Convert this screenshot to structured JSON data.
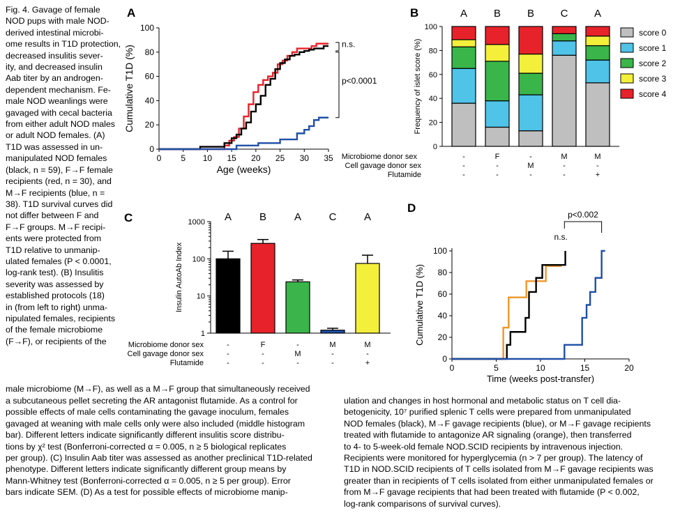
{
  "caption": {
    "side_lines": [
      "Fig. 4. Gavage of female",
      "NOD pups with male NOD-",
      "derived intestinal microbi-",
      "ome results in T1D protection,",
      "decreased insulitis sever-",
      "ity, and decreased insulin",
      "Aab titer by an androgen-",
      "dependent mechanism. Fe-",
      "male NOD weanlings were",
      "gavaged with cecal bacteria",
      "from either adult NOD males",
      "or adult NOD females. (A)",
      "T1D was assessed in un-",
      "manipulated NOD females",
      "(black, n = 59), F→F female",
      "recipients (red, n = 30), and",
      "M→F recipients (blue, n =",
      "38). T1D survival curves did",
      "not differ between F and",
      "F→F groups. M→F recipi-",
      "ents were protected from",
      "T1D relative to unmanip-",
      "ulated females (P < 0.0001,",
      "log-rank test). (B) Insulitis",
      "severity was assessed by",
      "established protocols (18)",
      "in (from left to right) unma-",
      "nipulated females, recipients",
      "of the female microbiome",
      "(F→F), or recipients of the"
    ],
    "top_line": "male microbiome (M→F), as well as a M→F group that simultaneously received",
    "bottom_left_lines": [
      "a subcutaneous pellet secreting the AR antagonist flutamide. As a control for",
      "possible effects of male cells contaminating the gavage inoculum, females",
      "gavaged at weaning with male cells only were also included (middle histogram",
      "bar). Different letters indicate significantly different insulitis score distribu-",
      "tions by χ² test (Bonferroni-corrected α = 0.005, n ≥ 5 biological replicates",
      "per group). (C) Insulin Aab titer was assessed as another preclinical T1D-related",
      "phenotype. Different letters indicate significantly different group means by",
      "Mann-Whitney test (Bonferroni-corrected α = 0.005, n ≥ 5 per group). Error",
      "bars indicate SEM. (D) As a test for possible effects of microbiome manip-"
    ],
    "bottom_right_lines": [
      "ulation and changes in host hormonal and metabolic status on T cell dia-",
      "betogenicity, 10⁷ purified splenic T cells were prepared from unmanipulated",
      "NOD females (black), M→F gavage recipients (blue), or M→F gavage recipients",
      "treated with flutamide to antagonize AR signaling (orange), then transferred",
      "to 4- to 5-week-old female NOD.SCID recipients by intravenous injection.",
      "Recipients were monitored for hyperglycemia (n > 7 per group). The latency of",
      "T1D in NOD.SCID recipients of T cells isolated from M→F gavage recipients was",
      "greater than in recipients of T cells isolated from either unmanipulated females or",
      "from M→F gavage recipients that had been treated with flutamide (P < 0.002,",
      "log-rank comparisons of survival curves)."
    ]
  },
  "colors": {
    "black": "#000000",
    "red": "#e8222a",
    "blue": "#1f4fa8",
    "orange": "#f0962b",
    "score0": "#bfbfbf",
    "score1": "#4fc3e8",
    "score2": "#3ab54a",
    "score3": "#f3ef3b",
    "score4": "#e8222a"
  },
  "chart_data": [
    {
      "panel": "A",
      "type": "line",
      "step": true,
      "ylabel": "Cumulative T1D (%)",
      "xlabel": "Age (weeks)",
      "xlim": [
        0,
        35
      ],
      "ylim": [
        0,
        100
      ],
      "xticks": [
        0,
        5,
        10,
        15,
        20,
        25,
        30,
        35
      ],
      "yticks": [
        0,
        20,
        40,
        60,
        80,
        100
      ],
      "yticklabels": [
        "0",
        "20",
        "40",
        "60",
        "80",
        "100"
      ],
      "series": [
        {
          "color": "red",
          "x": [
            0,
            13.5,
            14.5,
            15.5,
            16.5,
            17.5,
            18.5,
            19.5,
            20.5,
            21.5,
            22.5,
            23.5,
            24.5,
            25.5,
            26.5,
            27.5,
            28.5,
            29.5,
            30.5,
            31.5,
            32.5,
            33.5,
            35
          ],
          "y": [
            0,
            3,
            7,
            10,
            17,
            27,
            37,
            47,
            53,
            57,
            60,
            63,
            70,
            73,
            77,
            80,
            83,
            83,
            83,
            85,
            87,
            87,
            87
          ]
        },
        {
          "color": "black",
          "x": [
            0,
            8.5,
            13.5,
            15,
            16,
            17,
            18,
            19,
            20,
            21,
            22,
            23,
            24,
            25,
            26,
            27,
            28,
            29,
            30,
            31,
            32,
            33,
            34,
            35
          ],
          "y": [
            0,
            2,
            5,
            9,
            12,
            17,
            22,
            31,
            37,
            44,
            53,
            58,
            66,
            71,
            74,
            77,
            78,
            80,
            81,
            82,
            83,
            83,
            85,
            85
          ]
        },
        {
          "color": "blue",
          "x": [
            0,
            16,
            20.5,
            25,
            28.5,
            30,
            31,
            32,
            33,
            35
          ],
          "y": [
            0,
            3,
            5,
            8,
            13,
            16,
            19,
            24,
            26,
            26
          ]
        }
      ],
      "annotations": [
        "n.s.",
        "p<0.0001"
      ]
    },
    {
      "panel": "B",
      "type": "bar",
      "stacked": true,
      "ylabel": "Frequency of islet score (%)",
      "ylim": [
        0,
        100
      ],
      "yticks": [
        0,
        20,
        40,
        60,
        80,
        100
      ],
      "yticklabels": [
        "0",
        "20",
        "40",
        "60",
        "80",
        "100"
      ],
      "group_letters": [
        "A",
        "B",
        "B",
        "C",
        "A"
      ],
      "legend": [
        "score 0",
        "score 1",
        "score 2",
        "score 3",
        "score 4"
      ],
      "legend_position": "right",
      "series": [
        {
          "name": "score 0",
          "values": [
            36,
            16,
            13,
            76,
            53
          ]
        },
        {
          "name": "score 1",
          "values": [
            29,
            22,
            30,
            12,
            19
          ]
        },
        {
          "name": "score 2",
          "values": [
            18,
            33,
            18,
            6,
            12
          ]
        },
        {
          "name": "score 3",
          "values": [
            6,
            14,
            16,
            0,
            8
          ]
        },
        {
          "name": "score 4",
          "values": [
            11,
            15,
            23,
            6,
            8
          ]
        }
      ],
      "condition_labels": [
        "Microbiome donor sex",
        "Cell gavage donor sex",
        "Flutamide"
      ],
      "condition_values": [
        [
          "-",
          "F",
          "-",
          "M",
          "M"
        ],
        [
          "-",
          "-",
          "M",
          "-",
          "-"
        ],
        [
          "-",
          "-",
          "-",
          "-",
          "+"
        ]
      ]
    },
    {
      "panel": "C",
      "type": "bar",
      "ylabel": "Insulin AutoAb Index",
      "log_scale": true,
      "ylim": [
        1,
        1000
      ],
      "yticks": [
        1,
        10,
        100,
        1000
      ],
      "yticklabels": [
        "1",
        "10",
        "100",
        "1000"
      ],
      "group_letters": [
        "A",
        "B",
        "A",
        "C",
        "A"
      ],
      "values": [
        100,
        260,
        24,
        1.2,
        75
      ],
      "errors": [
        160,
        330,
        27,
        1.35,
        125
      ],
      "colors": [
        "black",
        "red",
        "score2",
        "blue",
        "score3"
      ],
      "condition_labels": [
        "Microbiome donor sex",
        "Cell gavage donor sex",
        "Flutamide"
      ],
      "condition_values": [
        [
          "-",
          "F",
          "-",
          "M",
          "M"
        ],
        [
          "-",
          "-",
          "M",
          "-",
          "-"
        ],
        [
          "-",
          "-",
          "-",
          "-",
          "+"
        ]
      ]
    },
    {
      "panel": "D",
      "type": "line",
      "step": true,
      "ylabel": "Cumulative T1D (%)",
      "xlabel": "Time (weeks post-transfer)",
      "xlim": [
        0,
        20
      ],
      "ylim": [
        0,
        100
      ],
      "xticks": [
        0,
        5,
        10,
        15,
        20
      ],
      "yticks": [
        0,
        20,
        40,
        60,
        80,
        100
      ],
      "yticklabels": [
        "0",
        "20",
        "40",
        "60",
        "80",
        "100"
      ],
      "series": [
        {
          "color": "orange",
          "x": [
            0,
            5.8,
            6.4,
            7.6,
            8.4,
            9.6,
            10.6,
            12.4
          ],
          "y": [
            0,
            29,
            57,
            57,
            72,
            72,
            86,
            86
          ]
        },
        {
          "color": "black",
          "x": [
            0,
            6.2,
            6.6,
            7.5,
            8.3,
            8.7,
            9.5,
            10.2,
            12.5,
            12.8
          ],
          "y": [
            0,
            13,
            25,
            25,
            38,
            62,
            75,
            87,
            87,
            100
          ]
        },
        {
          "color": "blue",
          "x": [
            0,
            12.7,
            14.7,
            15.2,
            15.6,
            16.2,
            16.9,
            17.3
          ],
          "y": [
            0,
            13,
            38,
            50,
            62,
            75,
            100,
            100
          ]
        }
      ],
      "annotations": [
        "n.s.",
        "p<0.002"
      ]
    }
  ]
}
